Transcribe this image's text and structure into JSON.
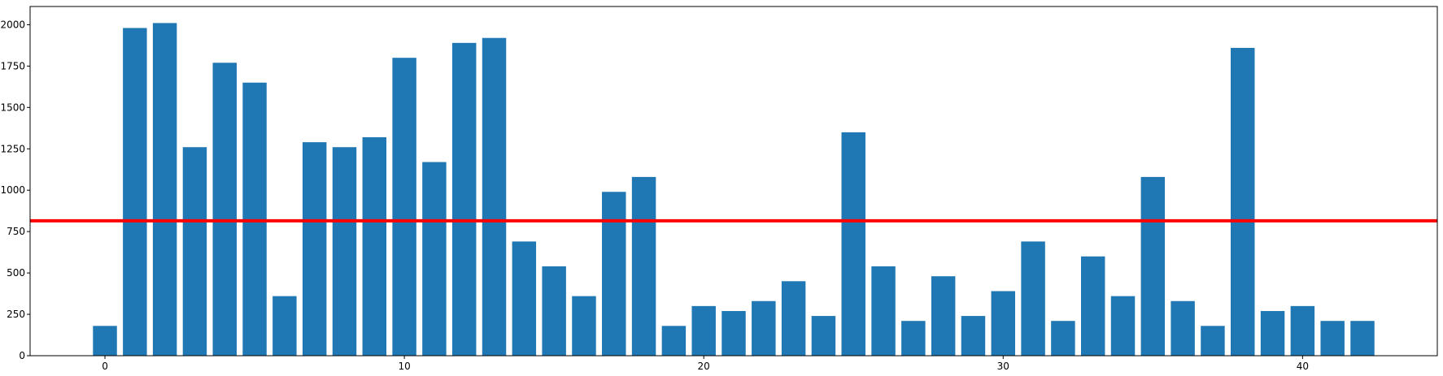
{
  "chart_data": {
    "type": "bar",
    "title": "",
    "xlabel": "",
    "ylabel": "",
    "x": [
      0,
      1,
      2,
      3,
      4,
      5,
      6,
      7,
      8,
      9,
      10,
      11,
      12,
      13,
      14,
      15,
      16,
      17,
      18,
      19,
      20,
      21,
      22,
      23,
      24,
      25,
      26,
      27,
      28,
      29,
      30,
      31,
      32,
      33,
      34,
      35,
      36,
      37,
      38,
      39,
      40,
      41,
      42
    ],
    "values": [
      180,
      1980,
      2010,
      1260,
      1770,
      1650,
      360,
      1290,
      1260,
      1320,
      1800,
      1170,
      1890,
      1920,
      690,
      540,
      360,
      990,
      1080,
      180,
      300,
      270,
      330,
      450,
      240,
      1350,
      540,
      210,
      480,
      240,
      390,
      690,
      210,
      600,
      360,
      1080,
      330,
      180,
      1860,
      270,
      300,
      210,
      210
    ],
    "xlim": [
      -2.5,
      44.5
    ],
    "ylim": [
      0,
      2110
    ],
    "xticks": [
      0,
      10,
      20,
      30,
      40
    ],
    "xtick_labels": [
      "0",
      "10",
      "20",
      "30",
      "40"
    ],
    "yticks": [
      0,
      250,
      500,
      750,
      1000,
      1250,
      1500,
      1750,
      2000
    ],
    "ytick_labels": [
      "0",
      "250",
      "500",
      "750",
      "1000",
      "1250",
      "1500",
      "1750",
      "2000"
    ],
    "bar_width": 0.8,
    "bar_color": "#1f77b4",
    "reference_line": {
      "y": 815,
      "color": "#ff0000"
    },
    "grid": false,
    "legend": "none"
  }
}
